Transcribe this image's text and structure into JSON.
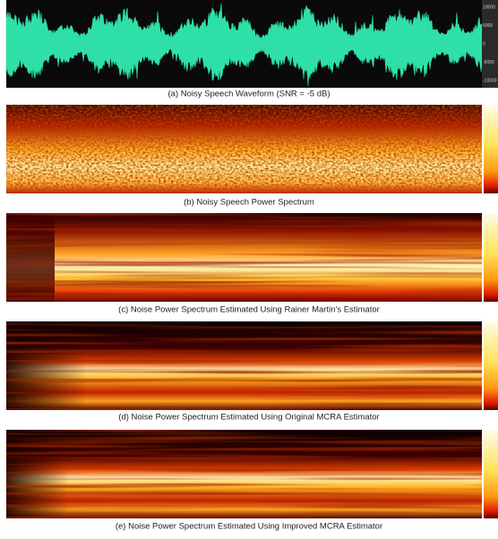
{
  "figure": {
    "panels": [
      {
        "caption": "(a) Noisy Speech Waveform (SNR = -5 dB)",
        "axis_ticks": [
          "10000",
          "5000",
          "0",
          "-5000",
          "-10000"
        ]
      },
      {
        "caption": "(b) Noisy Speech Power Spectrum"
      },
      {
        "caption": "(c) Noise Power Spectrum Estimated Using Rainer Martin's Estimator"
      },
      {
        "caption": "(d) Noise Power Spectrum Estimated Using Original MCRA Estimator"
      },
      {
        "caption": "(e) Noise Power Spectrum Estimated Using Improved MCRA Estimator"
      }
    ]
  }
}
